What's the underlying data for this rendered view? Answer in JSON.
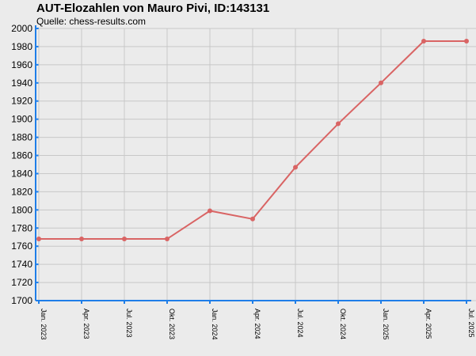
{
  "chart_data": {
    "type": "line",
    "title": "AUT-Elozahlen von Mauro Pivi, ID:143131",
    "subtitle": "Quelle: chess-results.com",
    "xlabel": "",
    "ylabel": "",
    "ylim": [
      1700,
      2000
    ],
    "y_ticks": [
      1700,
      1720,
      1740,
      1760,
      1780,
      1800,
      1820,
      1840,
      1860,
      1880,
      1900,
      1920,
      1940,
      1960,
      1980,
      2000
    ],
    "categories": [
      "Jan. 2023",
      "Apr. 2023",
      "Jul. 2023",
      "Okt. 2023",
      "Jan. 2024",
      "Apr. 2024",
      "Jul. 2024",
      "Okt. 2024",
      "Jan. 2025",
      "Apr. 2025",
      "Jul. 2025"
    ],
    "series": [
      {
        "values": [
          1768,
          1768,
          1768,
          1768,
          1799,
          1790,
          1847,
          1895,
          1940,
          1986,
          1986
        ]
      }
    ],
    "grid": true,
    "legend": "none",
    "colors": {
      "line": "#d96464",
      "axis": "#1f7ee8",
      "grid": "#c8c8c8",
      "background": "#ebebeb"
    }
  }
}
